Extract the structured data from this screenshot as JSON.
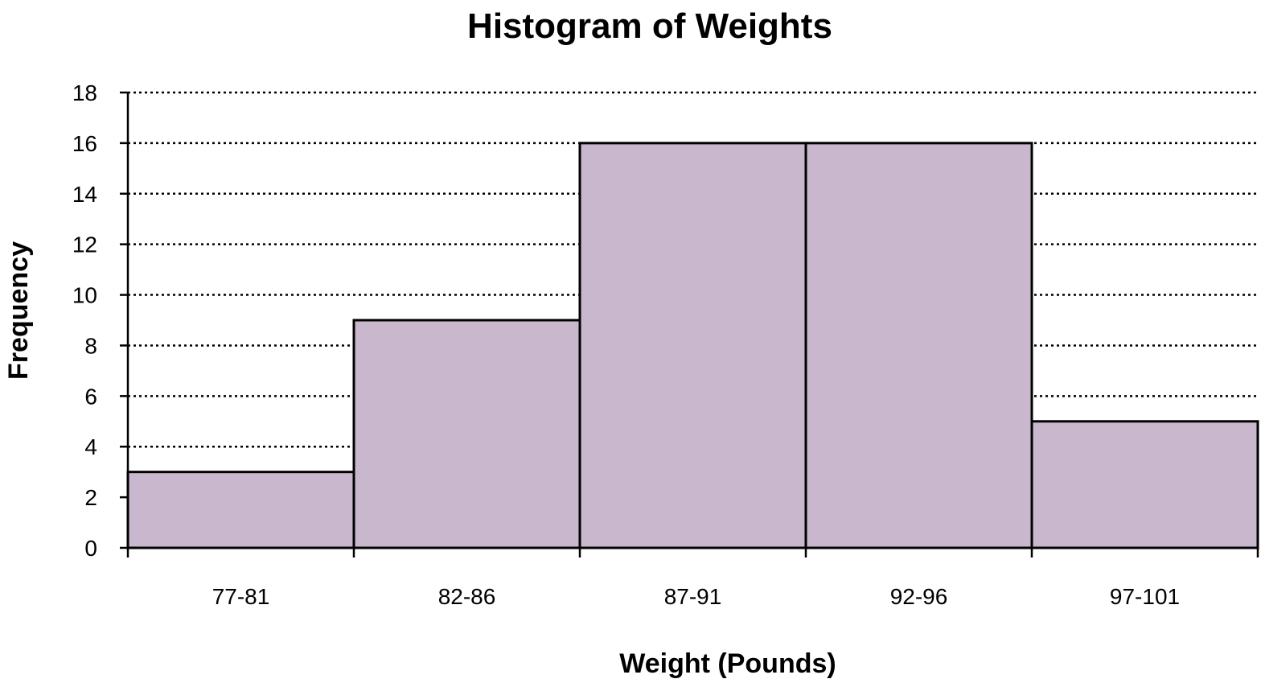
{
  "chart_data": {
    "type": "bar",
    "title": "Histogram of Weights",
    "xlabel": "Weight (Pounds)",
    "ylabel": "Frequency",
    "categories": [
      "77-81",
      "82-86",
      "87-91",
      "92-96",
      "97-101"
    ],
    "values": [
      3,
      9,
      16,
      16,
      5
    ],
    "ylim": [
      0,
      18
    ],
    "yticks": [
      0,
      2,
      4,
      6,
      8,
      10,
      12,
      14,
      16,
      18
    ],
    "grid": true,
    "grid_style": "dotted",
    "legend": "none",
    "bar_color": "#c9b8cd",
    "bar_edge_color": "#000000"
  }
}
